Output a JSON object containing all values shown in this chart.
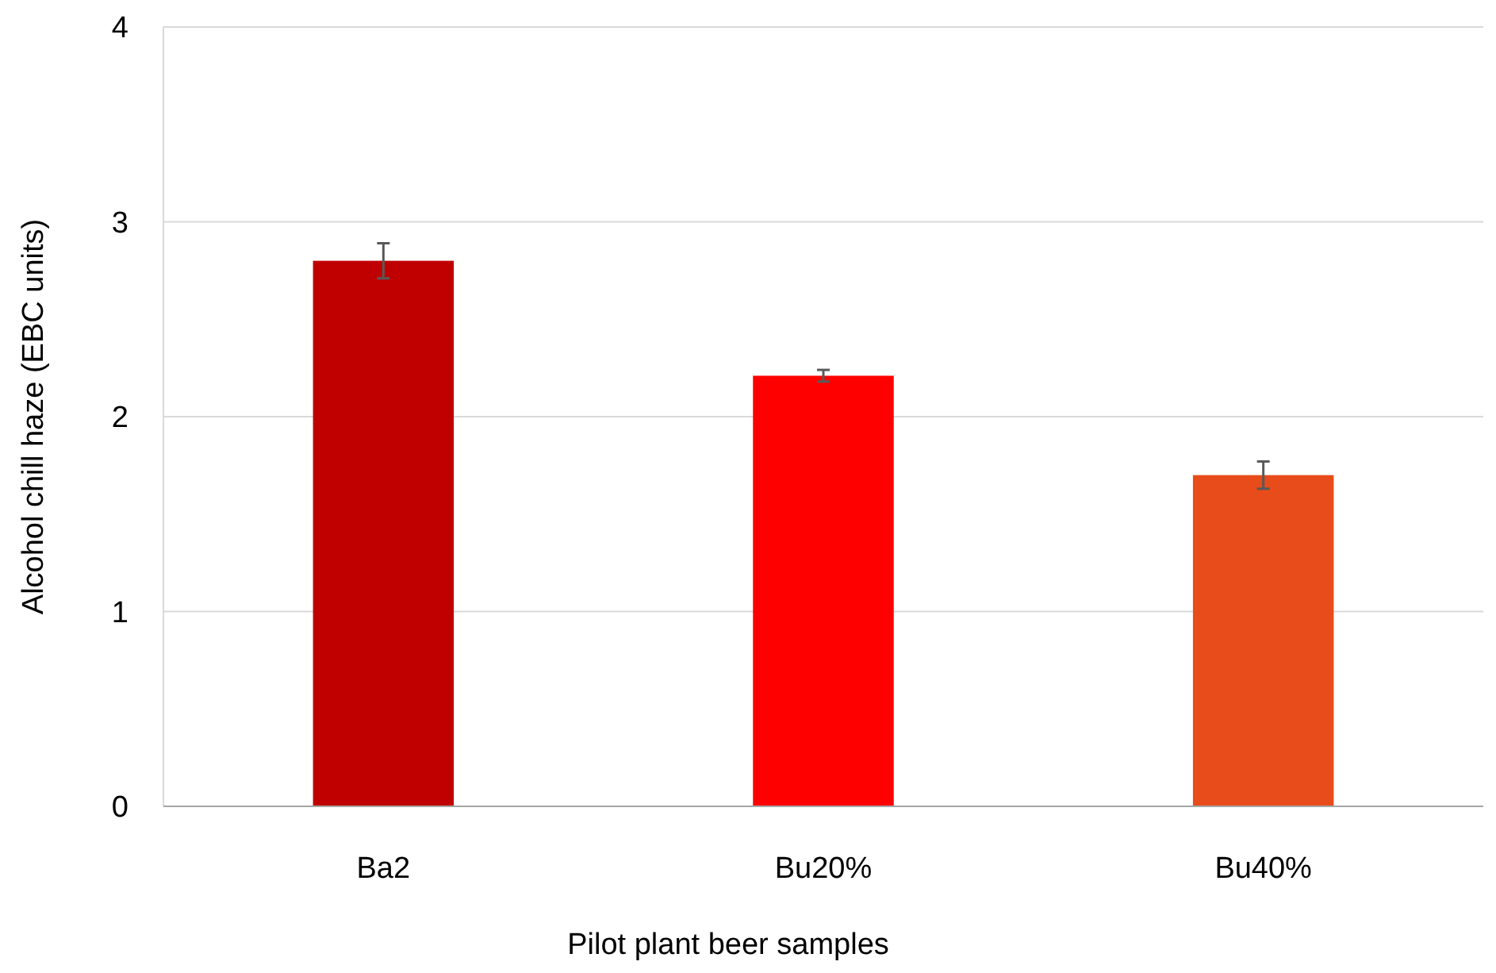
{
  "chart_data": {
    "type": "bar",
    "xlabel": "Pilot plant beer samples",
    "ylabel": "Alcohol chill haze (EBC units)",
    "categories": [
      "Ba2",
      "Bu20%",
      "Bu40%"
    ],
    "values": [
      2.8,
      2.21,
      1.7
    ],
    "colors": [
      "#c00000",
      "#ff0000",
      "#e84c1a"
    ],
    "errors": [
      0.09,
      0.03,
      0.07
    ],
    "ylim": [
      0,
      4
    ],
    "yticks": [
      0,
      1,
      2,
      3,
      4
    ],
    "grid": "y"
  }
}
